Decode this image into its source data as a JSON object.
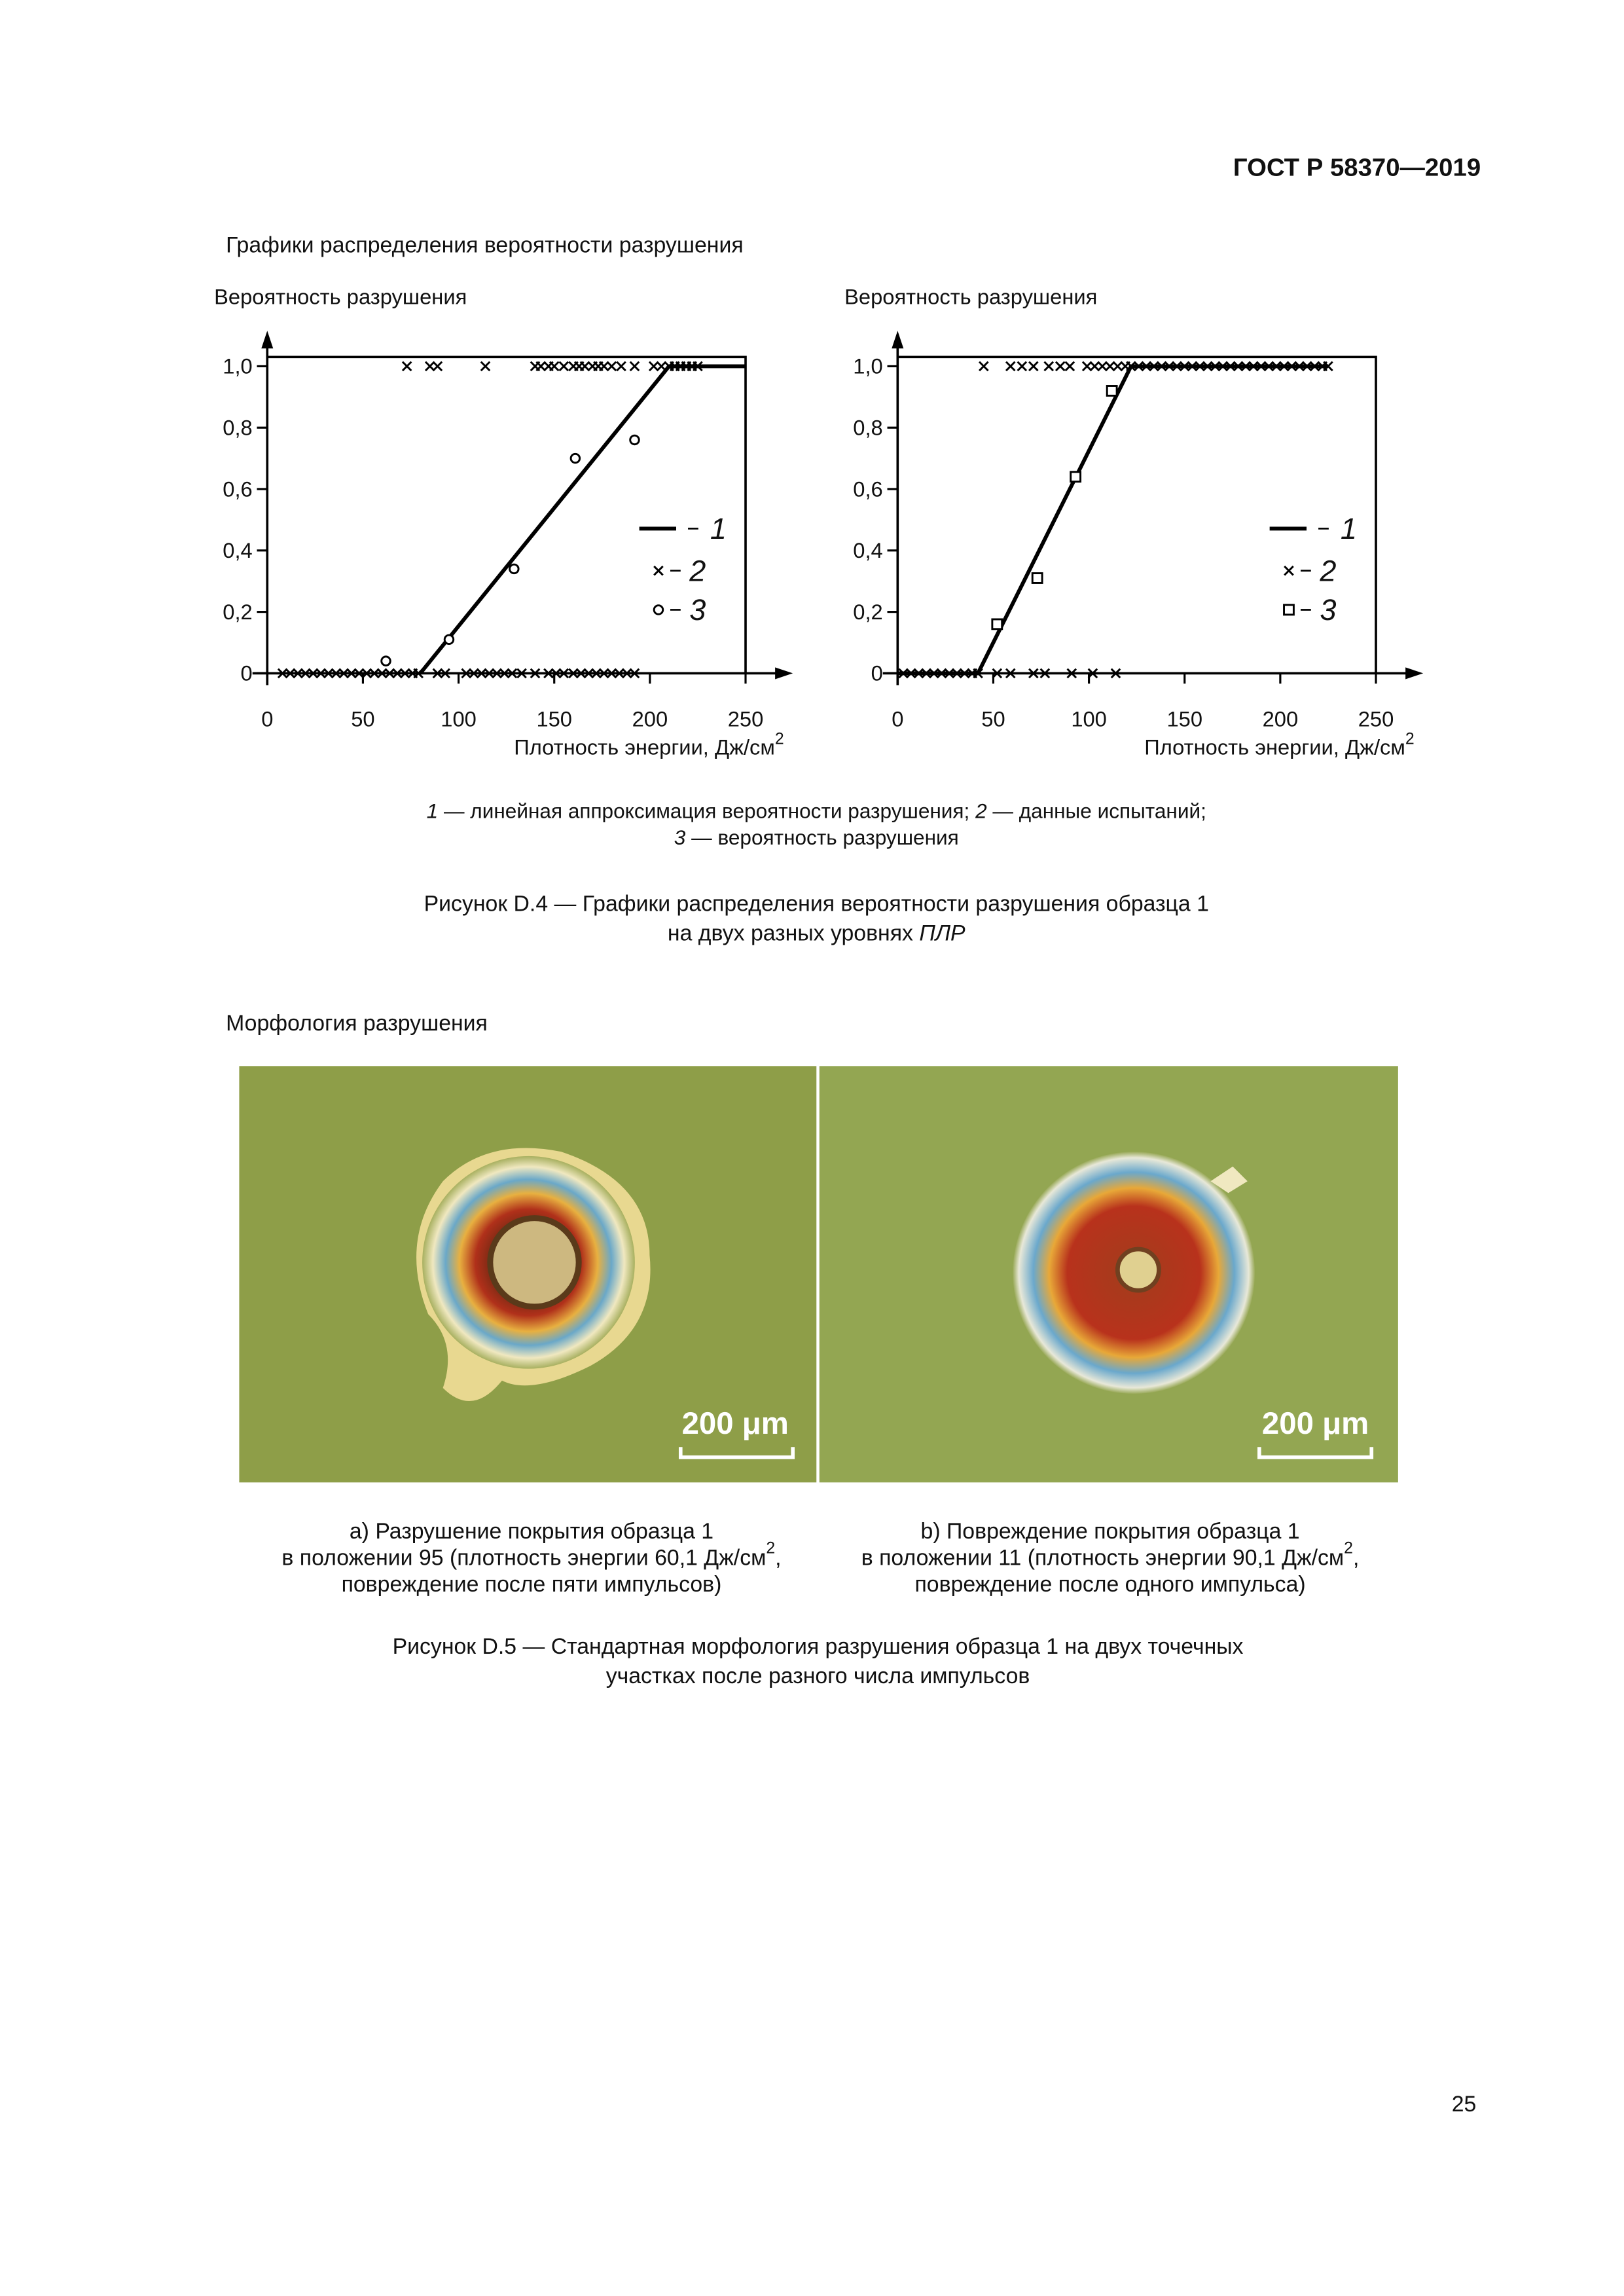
{
  "header": {
    "code": "ГОСТ Р 58370—2019"
  },
  "section1": {
    "title": "Графики распределения вероятности разрушения"
  },
  "chart_data": [
    {
      "type": "scatter",
      "ylabel": "Вероятность разрушения",
      "xlabel": "Плотность энергии, Дж/см",
      "xlabel_sup": "2",
      "xlim": [
        0,
        250
      ],
      "ylim": [
        0,
        1.03
      ],
      "xticks": [
        0,
        50,
        100,
        150,
        200,
        250
      ],
      "yticks": [
        0,
        {
          "value": 0.2,
          "label": "0,2"
        },
        {
          "value": 0.4,
          "label": "0,4"
        },
        {
          "value": 0.6,
          "label": "0,6"
        },
        {
          "value": 0.8,
          "label": "0,8"
        },
        {
          "value": 1,
          "label": "1,0"
        }
      ],
      "series": [
        {
          "name": "1",
          "marker": "line",
          "color": "#000000",
          "x": [
            80,
            210,
            250
          ],
          "values": [
            0,
            1,
            1
          ]
        },
        {
          "name": "2",
          "marker": "x",
          "color": "#000000",
          "x": [
            73,
            85,
            89,
            114,
            140,
            143,
            147,
            150,
            155,
            160,
            163,
            166,
            170,
            173,
            176,
            180,
            185,
            192,
            202,
            206,
            210,
            213,
            216,
            219,
            222,
            225,
            8,
            12,
            16,
            20,
            24,
            28,
            32,
            36,
            40,
            44,
            48,
            52,
            56,
            60,
            64,
            68,
            72,
            76,
            79,
            89,
            93,
            104,
            108,
            112,
            116,
            120,
            124,
            128,
            133,
            140,
            147,
            151,
            155,
            160,
            164,
            168,
            172,
            176,
            180,
            184,
            188,
            192
          ],
          "values": [
            1,
            1,
            1,
            1,
            1,
            1,
            1,
            1,
            1,
            1,
            1,
            1,
            1,
            1,
            1,
            1,
            1,
            1,
            1,
            1,
            1,
            1,
            1,
            1,
            1,
            1,
            0,
            0,
            0,
            0,
            0,
            0,
            0,
            0,
            0,
            0,
            0,
            0,
            0,
            0,
            0,
            0,
            0,
            0,
            0,
            0,
            0,
            0,
            0,
            0,
            0,
            0,
            0,
            0,
            0,
            0,
            0,
            0,
            0,
            0,
            0,
            0,
            0,
            0,
            0,
            0,
            0,
            0
          ]
        },
        {
          "name": "3",
          "marker": "circle",
          "color": "#000000",
          "x": [
            62,
            95,
            129,
            161,
            192
          ],
          "values": [
            0.04,
            0.11,
            0.34,
            0.7,
            0.76
          ]
        }
      ]
    },
    {
      "type": "scatter",
      "ylabel": "Вероятность разрушения",
      "xlabel": "Плотность энергии, Дж/см",
      "xlabel_sup": "2",
      "xlim": [
        0,
        250
      ],
      "ylim": [
        0,
        1.03
      ],
      "xticks": [
        0,
        50,
        100,
        150,
        200,
        250
      ],
      "yticks": [
        0,
        {
          "value": 0.2,
          "label": "0,2"
        },
        {
          "value": 0.4,
          "label": "0,4"
        },
        {
          "value": 0.6,
          "label": "0,6"
        },
        {
          "value": 0.8,
          "label": "0,8"
        },
        {
          "value": 1,
          "label": "1,0"
        }
      ],
      "series": [
        {
          "name": "1",
          "marker": "line",
          "color": "#000000",
          "x": [
            0,
            42,
            122,
            225
          ],
          "values": [
            0,
            0,
            1,
            1
          ]
        },
        {
          "name": "2",
          "marker": "x",
          "color": "#000000",
          "x": [
            45,
            59,
            65,
            71,
            79,
            85,
            90,
            99,
            103,
            107,
            111,
            115,
            119,
            122,
            126,
            130,
            134,
            138,
            142,
            146,
            150,
            154,
            158,
            162,
            166,
            170,
            174,
            178,
            182,
            186,
            190,
            194,
            198,
            202,
            206,
            210,
            214,
            218,
            222,
            225,
            3,
            7,
            11,
            15,
            19,
            23,
            27,
            31,
            35,
            39,
            42,
            52,
            59,
            71,
            77,
            91,
            102,
            114
          ],
          "values": [
            1,
            1,
            1,
            1,
            1,
            1,
            1,
            1,
            1,
            1,
            1,
            1,
            1,
            1,
            1,
            1,
            1,
            1,
            1,
            1,
            1,
            1,
            1,
            1,
            1,
            1,
            1,
            1,
            1,
            1,
            1,
            1,
            1,
            1,
            1,
            1,
            1,
            1,
            1,
            1,
            0,
            0,
            0,
            0,
            0,
            0,
            0,
            0,
            0,
            0,
            0,
            0,
            0,
            0,
            0,
            0,
            0,
            0
          ]
        },
        {
          "name": "3",
          "marker": "square",
          "color": "#000000",
          "x": [
            52,
            73,
            93,
            112
          ],
          "values": [
            0.16,
            0.31,
            0.64,
            0.92
          ]
        }
      ]
    }
  ],
  "legend_note": {
    "line1": [
      {
        "num": "1",
        "text": " — линейная аппроксимация вероятности разрушения; "
      },
      {
        "num": "2",
        "text": " — данные испытаний;"
      }
    ],
    "line2": [
      {
        "num": "3",
        "text": " — вероятность разрушения"
      }
    ]
  },
  "figure4": {
    "line1": "Рисунок D.4 — Графики распределения вероятности разрушения образца 1",
    "line2": "на двух разных уровнях ",
    "line2_italic": "ПЛР"
  },
  "section2": {
    "title": "Морфология разрушения"
  },
  "images": [
    {
      "scale": "200 μm",
      "caption": [
        "а) Разрушение покрытия образца 1",
        [
          "в положении 95 (плотность энергии 60,1 Дж/см",
          "2",
          ","
        ],
        "повреждение после пяти импульсов)"
      ]
    },
    {
      "scale": "200 μm",
      "caption": [
        "b) Повреждение покрытия образца 1",
        [
          "в положении 11 (плотность энергии 90,1 Дж/см",
          "2",
          ","
        ],
        "повреждение после одного импульса)"
      ]
    }
  ],
  "figure5": {
    "line1": "Рисунок D.5 — Стандартная морфология разрушения образца 1 на двух точечных",
    "line2": "участках после разного числа импульсов"
  },
  "page_number": "25"
}
